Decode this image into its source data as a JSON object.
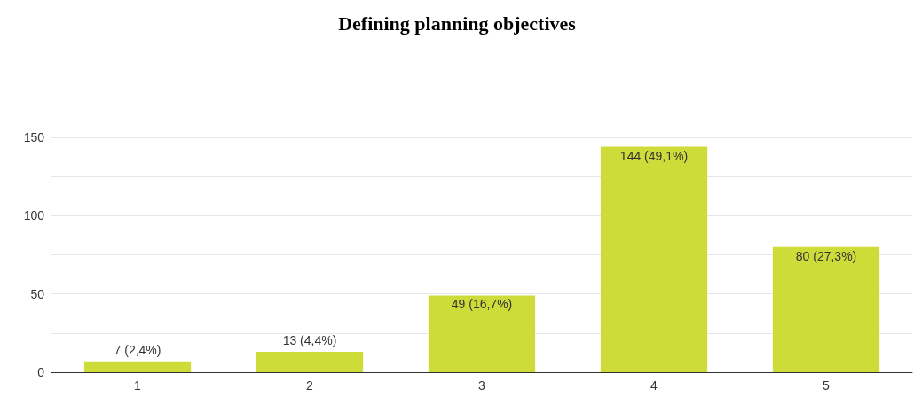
{
  "chart_data": {
    "type": "bar",
    "title": "Defining planning objectives",
    "categories": [
      "1",
      "2",
      "3",
      "4",
      "5"
    ],
    "values": [
      7,
      13,
      49,
      144,
      80
    ],
    "value_labels": [
      "7 (2,4%)",
      "13 (4,4%)",
      "49 (16,7%)",
      "144 (49,1%)",
      "80 (27,3%)"
    ],
    "color": "#cddc39",
    "ylim": [
      0,
      150
    ],
    "yticks": [
      0,
      {
        "value": 25,
        "label": null
      },
      50,
      {
        "value": 75,
        "label": null
      },
      100,
      {
        "value": 125,
        "label": null
      },
      150
    ],
    "grid": true
  }
}
